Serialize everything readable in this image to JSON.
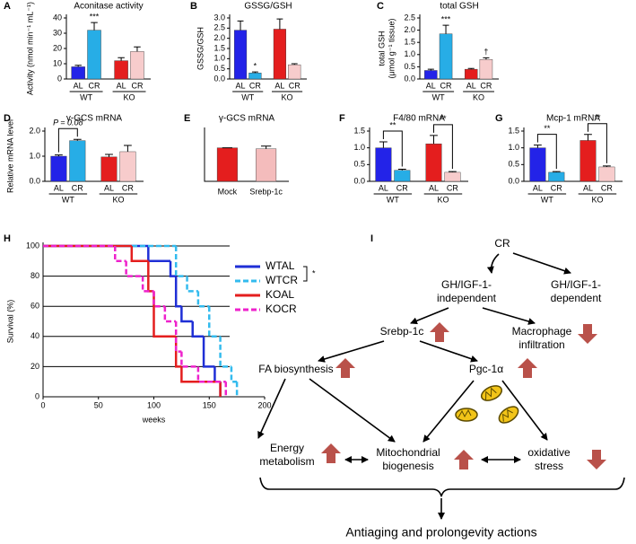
{
  "chart_data": [
    {
      "type": "bar",
      "label": "A",
      "title": "Aconitase activity",
      "ylabel": "Activity (nmol min⁻¹ mL⁻¹)",
      "categories": [
        "AL",
        "CR",
        "AL",
        "CR"
      ],
      "groups": [
        "WT",
        "KO"
      ],
      "values": [
        8,
        32,
        12,
        18
      ],
      "errors": [
        1,
        5,
        2,
        3
      ],
      "colors": [
        "#2323e8",
        "#27ade6",
        "#e41e1e",
        "#f7cccc"
      ],
      "ylim": [
        0,
        40
      ],
      "yticks": [
        0,
        10,
        20,
        30,
        40
      ],
      "annotations": [
        "***"
      ]
    },
    {
      "type": "bar",
      "label": "B",
      "title": "GSSG/GSH",
      "ylabel": "GSSG/GSH",
      "categories": [
        "AL",
        "CR",
        "AL",
        "CR"
      ],
      "groups": [
        "WT",
        "KO"
      ],
      "values": [
        2.4,
        0.3,
        2.45,
        0.7
      ],
      "errors": [
        0.45,
        0.05,
        0.5,
        0.05
      ],
      "colors": [
        "#2323e8",
        "#27ade6",
        "#e41e1e",
        "#f7cccc"
      ],
      "ylim": [
        0,
        3
      ],
      "yticks": [
        {
          "value": 0,
          "label": "0.0"
        },
        0.5,
        {
          "value": 1,
          "label": "1.0"
        },
        1.5,
        {
          "value": 2,
          "label": "2.0"
        },
        2.5,
        {
          "value": 3,
          "label": "3.0"
        }
      ],
      "annotations": [
        "*"
      ]
    },
    {
      "type": "bar",
      "label": "C",
      "title": "total GSH",
      "ylabel": [
        "total GSH",
        "(μmol g⁻¹ tissue)"
      ],
      "categories": [
        "AL",
        "CR",
        "AL",
        "CR"
      ],
      "groups": [
        "WT",
        "KO"
      ],
      "values": [
        0.35,
        1.85,
        0.4,
        0.8
      ],
      "errors": [
        0.05,
        0.35,
        0.03,
        0.07
      ],
      "colors": [
        "#2323e8",
        "#27ade6",
        "#e41e1e",
        "#f7cccc"
      ],
      "ylim": [
        0,
        2.5
      ],
      "yticks": [
        {
          "value": 0,
          "label": "0.0"
        },
        0.5,
        {
          "value": 1,
          "label": "1.0"
        },
        1.5,
        {
          "value": 2,
          "label": "2.0"
        },
        2.5
      ],
      "annotations": [
        "***",
        "†"
      ]
    },
    {
      "type": "bar",
      "label": "D",
      "title": "γ-GCS mRNA",
      "ylabel": "Relative mRNA level",
      "categories": [
        "AL",
        "CR",
        "AL",
        "CR"
      ],
      "groups": [
        "WT",
        "KO"
      ],
      "values": [
        1.0,
        1.62,
        0.97,
        1.18
      ],
      "errors": [
        0.05,
        0.05,
        0.1,
        0.25
      ],
      "colors": [
        "#2323e8",
        "#27ade6",
        "#e41e1e",
        "#f7cccc"
      ],
      "ylim": [
        0,
        2
      ],
      "yticks": [
        {
          "value": 0,
          "label": "0.0"
        },
        {
          "value": 1,
          "label": "1.0"
        },
        {
          "value": 2,
          "label": "2.0"
        }
      ],
      "annotations": [
        "P = 0.08"
      ]
    },
    {
      "type": "bar",
      "label": "E",
      "title": "γ-GCS mRNA",
      "categories": [
        "Mock",
        "Srebp-1c"
      ],
      "values": [
        1.0,
        0.97
      ],
      "errors": [
        0,
        0.08
      ],
      "colors": [
        "#e41e1e",
        "#f4bcbc"
      ],
      "ylim": [
        0,
        1.5
      ]
    },
    {
      "type": "bar",
      "label": "F",
      "title": "F4/80 mRNA",
      "categories": [
        "AL",
        "CR",
        "AL",
        "CR"
      ],
      "groups": [
        "WT",
        "KO"
      ],
      "values": [
        1.0,
        0.33,
        1.12,
        0.27
      ],
      "errors": [
        0.18,
        0.03,
        0.25,
        0.02
      ],
      "colors": [
        "#2323e8",
        "#27ade6",
        "#e41e1e",
        "#f7cccc"
      ],
      "ylim": [
        0,
        1.5
      ],
      "yticks": [
        {
          "value": 0,
          "label": "0.0"
        },
        0.5,
        {
          "value": 1,
          "label": "1.0"
        },
        1.5
      ],
      "annotations": [
        "**",
        "**"
      ]
    },
    {
      "type": "bar",
      "label": "G",
      "title": "Mcp-1 mRNA",
      "categories": [
        "AL",
        "CR",
        "AL",
        "CR"
      ],
      "groups": [
        "WT",
        "KO"
      ],
      "values": [
        1.0,
        0.27,
        1.22,
        0.43
      ],
      "errors": [
        0.08,
        0.02,
        0.18,
        0.03
      ],
      "colors": [
        "#2323e8",
        "#27ade6",
        "#e41e1e",
        "#f7cccc"
      ],
      "ylim": [
        0,
        1.5
      ],
      "yticks": [
        {
          "value": 0,
          "label": "0.0"
        },
        0.5,
        {
          "value": 1,
          "label": "1.0"
        },
        1.5
      ],
      "annotations": [
        "**",
        "**"
      ]
    },
    {
      "type": "survival",
      "label": "H",
      "xlabel": "weeks",
      "ylabel": "Survival (%)",
      "xlim": [
        0,
        200
      ],
      "ylim": [
        0,
        100
      ],
      "xticks": [
        0,
        50,
        100,
        150,
        200
      ],
      "yticks": [
        0,
        20,
        40,
        60,
        80,
        100
      ],
      "grid": true,
      "series": [
        {
          "name": "WTAL",
          "color": "#1f2fd6",
          "line_style": "solid",
          "x": [
            0,
            95,
            115,
            120,
            125,
            135,
            145,
            155,
            160
          ],
          "values": [
            100,
            90,
            80,
            60,
            50,
            40,
            20,
            10,
            0
          ]
        },
        {
          "name": "WTCR",
          "color": "#33bbee",
          "line_style": "dashed",
          "x": [
            0,
            120,
            130,
            140,
            150,
            160,
            170,
            175
          ],
          "values": [
            100,
            80,
            70,
            60,
            40,
            20,
            10,
            0
          ]
        },
        {
          "name": "KOAL",
          "color": "#e41e1e",
          "line_style": "solid",
          "x": [
            0,
            80,
            95,
            100,
            120,
            125,
            160
          ],
          "values": [
            100,
            90,
            70,
            40,
            20,
            10,
            0
          ]
        },
        {
          "name": "KOCR",
          "color": "#ee22cc",
          "line_style": "dashed",
          "x": [
            0,
            65,
            75,
            90,
            100,
            110,
            120,
            125,
            140,
            165
          ],
          "values": [
            100,
            90,
            80,
            70,
            60,
            50,
            30,
            20,
            10,
            0
          ]
        }
      ],
      "annotations": [
        "*"
      ]
    }
  ],
  "diagram": {
    "label": "I",
    "nodes": [
      {
        "lines": [
          "CR"
        ]
      },
      {
        "lines": [
          "GH/IGF-1-",
          "independent"
        ]
      },
      {
        "lines": [
          "GH/IGF-1-",
          "dependent"
        ]
      },
      {
        "lines": [
          "Srebp-1c"
        ]
      },
      {
        "lines": [
          "Macrophage",
          "infiltration"
        ]
      },
      {
        "lines": [
          "FA biosynthesis"
        ]
      },
      {
        "lines": [
          "Pgc-1α"
        ]
      },
      {
        "lines": [
          "Energy",
          "metabolism"
        ]
      },
      {
        "lines": [
          "Mitochondrial",
          "biogenesis"
        ]
      },
      {
        "lines": [
          "oxidative",
          "stress"
        ]
      }
    ],
    "conclusion": "Antiaging and prolongevity actions"
  }
}
